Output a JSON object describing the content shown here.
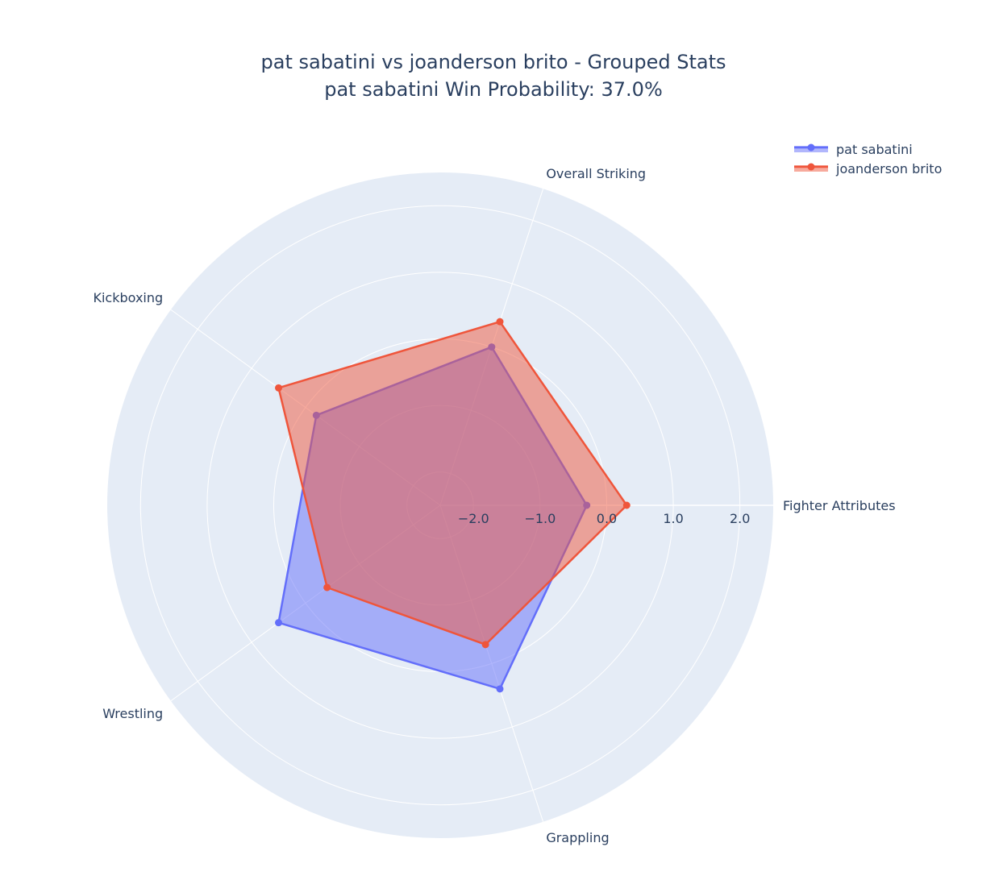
{
  "title": {
    "line1": "pat sabatini vs joanderson brito - Grouped Stats",
    "line2": "pat sabatini Win Probability: 37.0%"
  },
  "chart_data": {
    "type": "radar",
    "categories": [
      "Fighter Attributes",
      "Overall Striking",
      "Kickboxing",
      "Wrestling",
      "Grappling"
    ],
    "radial_range": [
      -2.5,
      2.5
    ],
    "radial_ticks": [
      -2,
      -1,
      0,
      1,
      2
    ],
    "radial_tick_labels": [
      "−2.0",
      "−1.0",
      "0.0",
      "1.0",
      "2.0"
    ],
    "grid": true,
    "legend_position": "top-right",
    "series": [
      {
        "name": "pat sabatini",
        "values": [
          -0.3,
          0.0,
          -0.2,
          0.5,
          0.4
        ],
        "color": "#636efa"
      },
      {
        "name": "joanderson brito",
        "values": [
          0.3,
          0.4,
          0.5,
          -0.4,
          -0.3
        ],
        "color": "#ef553b"
      }
    ]
  }
}
